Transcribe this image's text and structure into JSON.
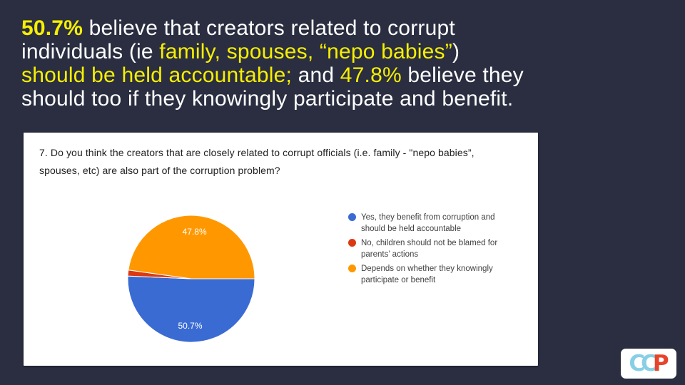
{
  "slide": {
    "background_color": "#2a2e40",
    "headline": {
      "text_color": "#ffffff",
      "highlight_color": "#f7ef00",
      "lines": [
        {
          "segments": [
            {
              "text": "50.7%"
            },
            {
              "text": " believe that creators related to corrupt"
            }
          ]
        },
        {
          "segments": [
            {
              "text": "individuals (ie "
            },
            {
              "text": "family, spouses, “nepo babies”"
            },
            {
              "text": ")"
            }
          ]
        },
        {
          "segments": [
            {
              "text": "should be held accountable;"
            },
            {
              "text": " and "
            },
            {
              "text": "47.8%"
            },
            {
              "text": " believe they"
            }
          ]
        },
        {
          "segments": [
            {
              "text": "should too if they knowingly participate and benefit."
            }
          ]
        }
      ]
    }
  },
  "card": {
    "question": {
      "lines": [
        "7. Do you think the creators that are closely related to corrupt officials (i.e. family - \"nepo babies”,",
        "spouses, etc) are also part of the corruption problem?"
      ]
    }
  },
  "chart_data": {
    "type": "pie",
    "title": "7. Do you think the creators that are closely related to corrupt officials (i.e. family - \"nepo babies\", spouses, etc) are also part of the corruption problem?",
    "units": "%",
    "total": 100,
    "start_angle_deg": 0,
    "direction": "clockwise",
    "legend_position": "right",
    "slice_label_color": "#ffffff",
    "slices": [
      {
        "label": "Yes, they benefit from corruption and should be held accountable",
        "label_lines": [
          "Yes, they benefit from corruption and",
          "should be held accountable"
        ],
        "value": 50.7,
        "display": "50.7%",
        "color": "#3a6bd3"
      },
      {
        "label": "No, children should not be blamed for parents’ actions",
        "label_lines": [
          "No, children should not be blamed for",
          "parents’ actions"
        ],
        "value": 1.5,
        "display": "",
        "color": "#db3912"
      },
      {
        "label": "Depends on whether they knowingly participate or benefit",
        "label_lines": [
          "Depends on whether they knowingly",
          "participate or benefit"
        ],
        "value": 47.8,
        "display": "47.8%",
        "color": "#ff9800"
      }
    ]
  },
  "logo": {
    "letters": [
      {
        "char": "C",
        "color": "#87cfe6"
      },
      {
        "char": "C",
        "color": "#87cfe6"
      },
      {
        "char": "P",
        "color": "#e8432b"
      }
    ]
  }
}
